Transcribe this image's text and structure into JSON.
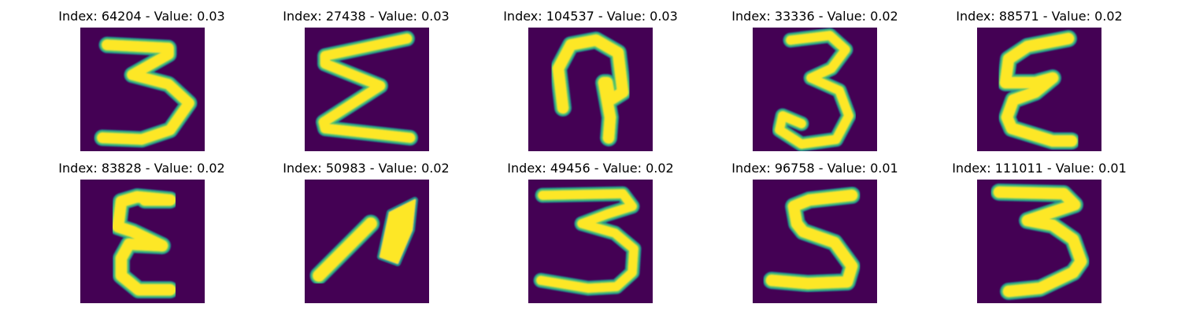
{
  "colormap": {
    "background": "#440154",
    "edge": "#21918c",
    "mid": "#5ec962",
    "stroke": "#fde725"
  },
  "panels": [
    {
      "title": "Index: 64204 - Value: 0.03",
      "glyph": "3-open"
    },
    {
      "title": "Index: 27438 - Value: 0.03",
      "glyph": "sigma"
    },
    {
      "title": "Index: 104537 - Value: 0.03",
      "glyph": "arch-loop"
    },
    {
      "title": "Index: 33336 - Value: 0.02",
      "glyph": "3-curly"
    },
    {
      "title": "Index: 88571 - Value: 0.02",
      "glyph": "epsilon-tall"
    },
    {
      "title": "Index: 83828 - Value: 0.02",
      "glyph": "epsilon"
    },
    {
      "title": "Index: 50983 - Value: 0.02",
      "glyph": "leaf-stroke"
    },
    {
      "title": "Index: 49456 - Value: 0.02",
      "glyph": "3-wide"
    },
    {
      "title": "Index: 96758 - Value: 0.01",
      "glyph": "5-shape"
    },
    {
      "title": "Index: 111011 - Value: 0.01",
      "glyph": "3-zigzag"
    }
  ]
}
